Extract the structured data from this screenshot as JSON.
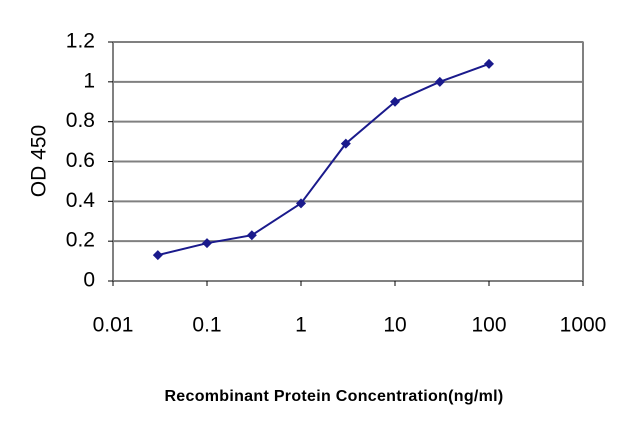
{
  "chart_data": {
    "type": "line",
    "x_label": "Recombinant Protein Concentration(ng/ml)",
    "y_label": "OD 450",
    "x": [
      0.03,
      0.1,
      0.3,
      1,
      3,
      10,
      30,
      100
    ],
    "values": [
      0.13,
      0.19,
      0.23,
      0.39,
      0.69,
      0.9,
      1.0,
      1.09
    ],
    "color": "#1a1a8c",
    "x_log": true,
    "xlim": [
      0.01,
      1000
    ],
    "xticks": [
      0.01,
      0.1,
      1,
      10,
      100,
      1000
    ],
    "ylim": [
      0,
      1.2
    ],
    "yticks": [
      0,
      0.2,
      0.4,
      0.6,
      0.8,
      1,
      1.2
    ],
    "grid": true
  }
}
